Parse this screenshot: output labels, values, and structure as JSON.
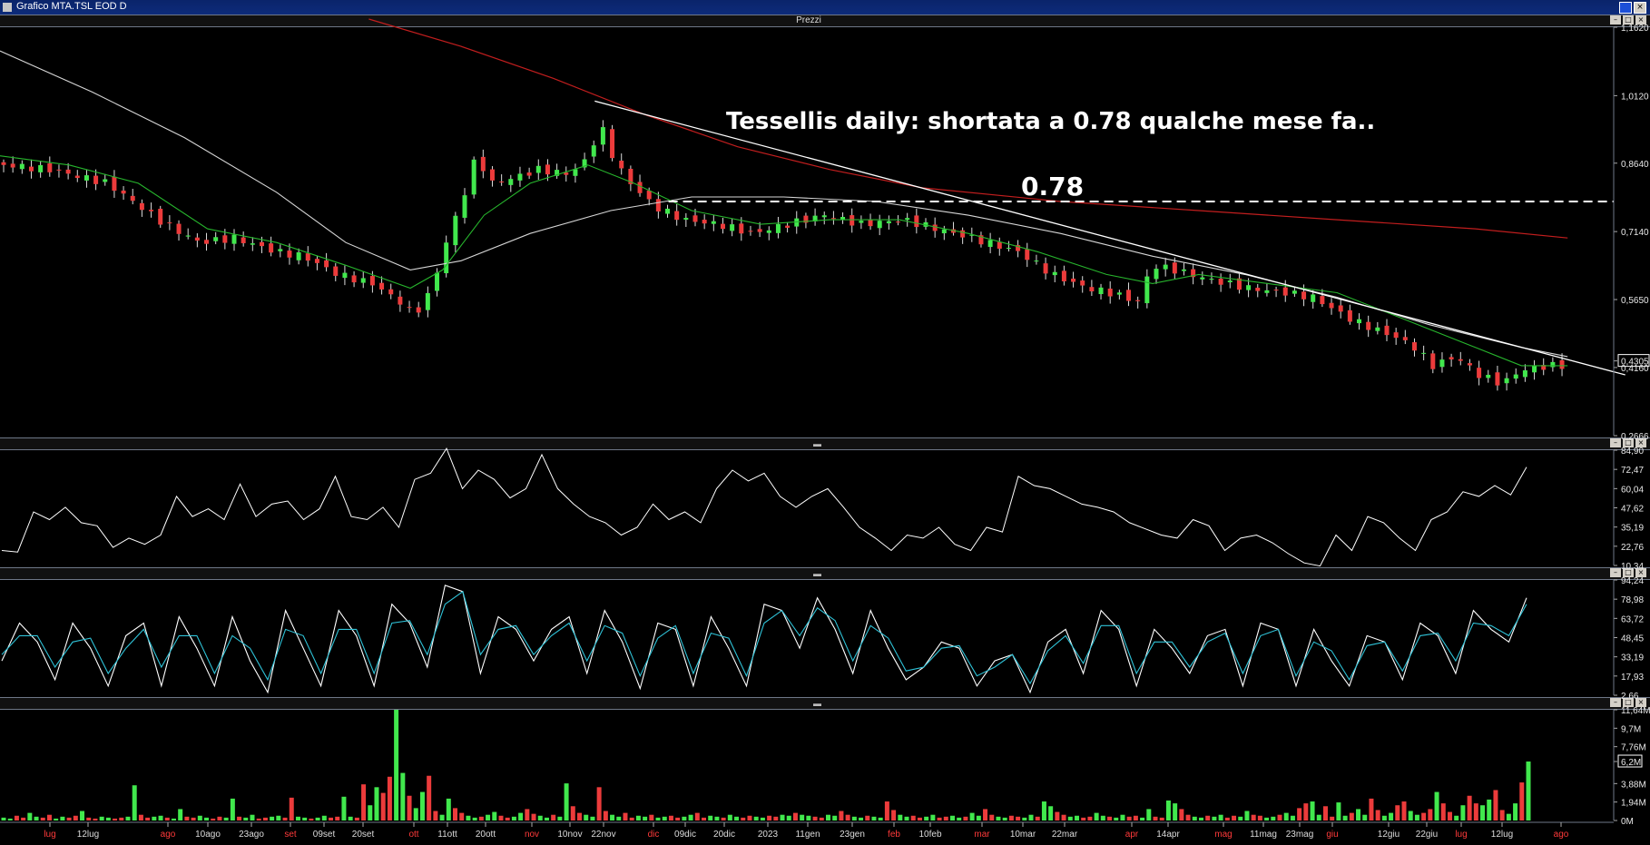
{
  "window": {
    "title": "Grafico MTA.TSL EOD D",
    "pane_label": "Prezzi"
  },
  "annotation": {
    "text": "Tessellis daily: shortata a 0.78 qualche mese fa..",
    "level_label": "0.78",
    "level": 0.78
  },
  "colors": {
    "background": "#000000",
    "up_candle": "#41e84d",
    "down_candle": "#ec3b3b",
    "ma_short": "#27b52d",
    "ma_long": "#d6d6d6",
    "ma_200": "#c21e1e",
    "trendline": "#ffffff",
    "stoch_k": "#ffffff",
    "stoch_d": "#2fc3d8",
    "date_month": "#ff3a3a",
    "date_day": "#dddddd"
  },
  "chart_data": [
    {
      "type": "candlestick",
      "title": "Prezzi",
      "y_ticks": [
        "1,1620",
        "1,0120",
        "0,8640",
        "0,7140",
        "0,5650",
        "0,4305",
        "0,4160",
        "0,2666"
      ],
      "ylim": [
        0.2666,
        1.162
      ],
      "last_price_label": "0,4305",
      "x_ticks": [
        {
          "label": "lug",
          "month": true
        },
        {
          "label": "12lug",
          "month": false
        },
        {
          "label": "ago",
          "month": true
        },
        {
          "label": "10ago",
          "month": false
        },
        {
          "label": "23ago",
          "month": false
        },
        {
          "label": "set",
          "month": true
        },
        {
          "label": "09set",
          "month": false
        },
        {
          "label": "20set",
          "month": false
        },
        {
          "label": "ott",
          "month": true
        },
        {
          "label": "11ott",
          "month": false
        },
        {
          "label": "20ott",
          "month": false
        },
        {
          "label": "nov",
          "month": true
        },
        {
          "label": "10nov",
          "month": false
        },
        {
          "label": "22nov",
          "month": false
        },
        {
          "label": "dic",
          "month": true
        },
        {
          "label": "09dic",
          "month": false
        },
        {
          "label": "20dic",
          "month": false
        },
        {
          "label": "2023",
          "month": false
        },
        {
          "label": "11gen",
          "month": false
        },
        {
          "label": "23gen",
          "month": false
        },
        {
          "label": "feb",
          "month": true
        },
        {
          "label": "10feb",
          "month": false
        },
        {
          "label": "mar",
          "month": true
        },
        {
          "label": "10mar",
          "month": false
        },
        {
          "label": "22mar",
          "month": false
        },
        {
          "label": "apr",
          "month": true
        },
        {
          "label": "14apr",
          "month": false
        },
        {
          "label": "mag",
          "month": true
        },
        {
          "label": "11mag",
          "month": false
        },
        {
          "label": "23mag",
          "month": false
        },
        {
          "label": "giu",
          "month": true
        },
        {
          "label": "12giu",
          "month": false
        },
        {
          "label": "22giu",
          "month": false
        },
        {
          "label": "lug",
          "month": true
        },
        {
          "label": "12lug",
          "month": false
        },
        {
          "label": "ago",
          "month": true
        }
      ],
      "close_path": [
        [
          0,
          0.86
        ],
        [
          20,
          0.85
        ],
        [
          45,
          0.82
        ],
        [
          70,
          0.73
        ],
        [
          85,
          0.69
        ],
        [
          100,
          0.7
        ],
        [
          118,
          0.67
        ],
        [
          130,
          0.66
        ],
        [
          145,
          0.62
        ],
        [
          160,
          0.6
        ],
        [
          172,
          0.56
        ],
        [
          178,
          0.53
        ],
        [
          185,
          0.58
        ],
        [
          192,
          0.69
        ],
        [
          200,
          0.8
        ],
        [
          205,
          0.88
        ],
        [
          212,
          0.82
        ],
        [
          220,
          0.83
        ],
        [
          232,
          0.85
        ],
        [
          245,
          0.84
        ],
        [
          255,
          0.88
        ],
        [
          258,
          0.97
        ],
        [
          262,
          0.9
        ],
        [
          270,
          0.83
        ],
        [
          282,
          0.77
        ],
        [
          295,
          0.74
        ],
        [
          310,
          0.73
        ],
        [
          325,
          0.71
        ],
        [
          340,
          0.73
        ],
        [
          356,
          0.75
        ],
        [
          372,
          0.73
        ],
        [
          390,
          0.74
        ],
        [
          405,
          0.72
        ],
        [
          420,
          0.7
        ],
        [
          440,
          0.67
        ],
        [
          455,
          0.62
        ],
        [
          470,
          0.59
        ],
        [
          480,
          0.58
        ],
        [
          492,
          0.56
        ],
        [
          498,
          0.64
        ],
        [
          508,
          0.63
        ],
        [
          522,
          0.61
        ],
        [
          540,
          0.59
        ],
        [
          556,
          0.58
        ],
        [
          568,
          0.57
        ],
        [
          585,
          0.52
        ],
        [
          595,
          0.5
        ],
        [
          605,
          0.48
        ],
        [
          612,
          0.46
        ],
        [
          620,
          0.42
        ],
        [
          630,
          0.44
        ],
        [
          640,
          0.4
        ],
        [
          650,
          0.38
        ],
        [
          658,
          0.41
        ],
        [
          670,
          0.42
        ],
        [
          677,
          0.42
        ],
        [
          680,
          0.44
        ]
      ],
      "ma_short_path": [
        [
          0,
          0.88
        ],
        [
          30,
          0.86
        ],
        [
          60,
          0.82
        ],
        [
          90,
          0.72
        ],
        [
          120,
          0.69
        ],
        [
          150,
          0.64
        ],
        [
          178,
          0.59
        ],
        [
          192,
          0.63
        ],
        [
          210,
          0.75
        ],
        [
          230,
          0.82
        ],
        [
          255,
          0.86
        ],
        [
          275,
          0.82
        ],
        [
          300,
          0.76
        ],
        [
          330,
          0.73
        ],
        [
          360,
          0.74
        ],
        [
          390,
          0.74
        ],
        [
          420,
          0.71
        ],
        [
          450,
          0.67
        ],
        [
          480,
          0.62
        ],
        [
          500,
          0.6
        ],
        [
          520,
          0.62
        ],
        [
          550,
          0.6
        ],
        [
          580,
          0.58
        ],
        [
          610,
          0.52
        ],
        [
          640,
          0.46
        ],
        [
          660,
          0.42
        ],
        [
          680,
          0.42
        ]
      ],
      "ma_long_path": [
        [
          0,
          1.11
        ],
        [
          40,
          1.02
        ],
        [
          80,
          0.92
        ],
        [
          120,
          0.8
        ],
        [
          150,
          0.69
        ],
        [
          178,
          0.63
        ],
        [
          200,
          0.65
        ],
        [
          230,
          0.71
        ],
        [
          265,
          0.76
        ],
        [
          300,
          0.79
        ],
        [
          340,
          0.79
        ],
        [
          380,
          0.78
        ],
        [
          420,
          0.75
        ],
        [
          460,
          0.71
        ],
        [
          500,
          0.66
        ],
        [
          540,
          0.62
        ],
        [
          580,
          0.57
        ],
        [
          620,
          0.51
        ],
        [
          660,
          0.46
        ],
        [
          680,
          0.44
        ]
      ],
      "ma_200_path": [
        [
          160,
          1.18
        ],
        [
          200,
          1.12
        ],
        [
          240,
          1.05
        ],
        [
          280,
          0.97
        ],
        [
          320,
          0.9
        ],
        [
          360,
          0.85
        ],
        [
          400,
          0.81
        ],
        [
          460,
          0.78
        ],
        [
          520,
          0.76
        ],
        [
          580,
          0.74
        ],
        [
          640,
          0.72
        ],
        [
          680,
          0.7
        ]
      ],
      "trendline": [
        [
          258,
          1.0
        ],
        [
          705,
          0.4
        ]
      ],
      "level_line_span": [
        290,
        700
      ],
      "bar_count": 700
    },
    {
      "type": "line",
      "title": "",
      "y_ticks": [
        "84,90",
        "72,47",
        "60,04",
        "47,62",
        "35,19",
        "22,76",
        "10,34"
      ],
      "ylim": [
        10.34,
        84.9
      ],
      "values": [
        20,
        19,
        45,
        40,
        48,
        38,
        36,
        22,
        28,
        24,
        30,
        55,
        42,
        47,
        40,
        63,
        42,
        50,
        52,
        40,
        47,
        68,
        42,
        40,
        48,
        35,
        66,
        70,
        86,
        60,
        72,
        66,
        54,
        60,
        82,
        60,
        50,
        42,
        38,
        30,
        35,
        50,
        40,
        45,
        38,
        60,
        72,
        65,
        70,
        55,
        48,
        55,
        60,
        48,
        35,
        28,
        20,
        30,
        28,
        35,
        24,
        20,
        35,
        32,
        68,
        62,
        60,
        55,
        50,
        48,
        45,
        38,
        34,
        30,
        28,
        40,
        36,
        20,
        28,
        30,
        25,
        18,
        12,
        10,
        30,
        20,
        42,
        38,
        28,
        20,
        40,
        45,
        58,
        55,
        62,
        56,
        74
      ]
    },
    {
      "type": "line",
      "title": "",
      "y_ticks": [
        "94,24",
        "78,98",
        "63,72",
        "48,45",
        "33,19",
        "17,93",
        "2,66"
      ],
      "ylim": [
        2.66,
        94.24
      ],
      "series": [
        {
          "key": "k",
          "values": [
            30,
            60,
            45,
            15,
            60,
            40,
            10,
            50,
            60,
            10,
            65,
            40,
            10,
            65,
            30,
            5,
            70,
            40,
            10,
            70,
            50,
            10,
            75,
            60,
            25,
            90,
            85,
            20,
            65,
            55,
            30,
            55,
            65,
            20,
            70,
            45,
            8,
            60,
            55,
            10,
            65,
            40,
            10,
            75,
            70,
            40,
            80,
            55,
            20,
            70,
            40,
            15,
            25,
            45,
            40,
            10,
            30,
            35,
            5,
            45,
            55,
            20,
            70,
            55,
            10,
            55,
            40,
            20,
            50,
            55,
            10,
            60,
            55,
            10,
            55,
            30,
            10,
            50,
            45,
            15,
            60,
            50,
            20,
            70,
            55,
            45,
            80
          ]
        },
        {
          "key": "d",
          "values": [
            35,
            50,
            50,
            25,
            45,
            48,
            20,
            40,
            55,
            25,
            50,
            50,
            20,
            50,
            40,
            15,
            55,
            50,
            20,
            55,
            55,
            20,
            60,
            62,
            35,
            75,
            85,
            35,
            55,
            58,
            35,
            50,
            60,
            30,
            58,
            52,
            18,
            48,
            58,
            20,
            52,
            48,
            18,
            60,
            70,
            50,
            72,
            62,
            30,
            58,
            48,
            22,
            25,
            40,
            42,
            18,
            25,
            35,
            12,
            38,
            50,
            28,
            58,
            58,
            20,
            45,
            45,
            25,
            45,
            52,
            20,
            50,
            55,
            18,
            45,
            38,
            15,
            42,
            45,
            22,
            50,
            52,
            30,
            60,
            58,
            50,
            75
          ]
        }
      ]
    },
    {
      "type": "bar",
      "title": "",
      "y_ticks": [
        "11,64M",
        "9,7M",
        "7,76M",
        "6,2M",
        "3,88M",
        "1,94M",
        "0M"
      ],
      "ylim": [
        0,
        11.64
      ],
      "values_m": [
        0.3,
        0.2,
        0.5,
        0.3,
        0.8,
        0.4,
        0.3,
        0.6,
        0.2,
        0.4,
        0.3,
        0.5,
        1.0,
        0.3,
        0.2,
        0.4,
        0.3,
        0.2,
        0.3,
        0.4,
        3.7,
        0.6,
        0.3,
        0.4,
        0.5,
        0.3,
        0.2,
        1.2,
        0.4,
        0.3,
        0.5,
        0.3,
        0.2,
        0.4,
        0.3,
        2.3,
        0.4,
        0.3,
        0.6,
        0.2,
        0.3,
        0.4,
        0.5,
        0.3,
        2.4,
        0.4,
        0.3,
        0.2,
        0.3,
        0.5,
        0.3,
        0.4,
        2.5,
        0.4,
        0.3,
        3.8,
        1.6,
        3.5,
        2.9,
        4.6,
        11.64,
        5.0,
        2.6,
        1.3,
        3.0,
        4.7,
        1.0,
        0.6,
        2.3,
        1.3,
        0.8,
        0.5,
        0.3,
        0.4,
        0.6,
        0.9,
        0.5,
        0.3,
        0.4,
        0.8,
        1.2,
        0.7,
        0.5,
        0.3,
        0.6,
        0.4,
        3.9,
        1.5,
        0.8,
        0.6,
        0.4,
        3.5,
        1.0,
        0.6,
        0.4,
        0.8,
        0.3,
        0.5,
        0.4,
        0.6,
        0.3,
        0.4,
        0.5,
        0.3,
        0.4,
        0.6,
        0.8,
        0.3,
        0.5,
        0.4,
        0.3,
        0.6,
        0.4,
        0.3,
        0.5,
        0.4,
        0.3,
        0.5,
        0.4,
        0.6,
        0.5,
        0.8,
        0.6,
        0.5,
        0.4,
        0.3,
        0.6,
        0.5,
        1.0,
        0.6,
        0.4,
        0.3,
        0.5,
        0.4,
        0.3,
        2.0,
        1.1,
        0.6,
        0.4,
        0.5,
        0.3,
        0.4,
        0.6,
        0.3,
        0.4,
        0.5,
        0.3,
        0.4,
        0.8,
        0.5,
        1.2,
        0.6,
        0.4,
        0.3,
        0.5,
        0.4,
        0.3,
        0.6,
        0.4,
        2.0,
        1.5,
        0.9,
        0.6,
        0.4,
        0.5,
        0.3,
        0.4,
        0.8,
        0.5,
        0.4,
        0.3,
        0.6,
        0.4,
        0.5,
        0.3,
        1.2,
        0.4,
        0.3,
        2.1,
        1.8,
        1.2,
        0.6,
        0.4,
        0.3,
        0.5,
        0.4,
        0.6,
        0.3,
        0.5,
        0.4,
        1.0,
        0.6,
        0.5,
        0.3,
        0.4,
        0.6,
        0.8,
        0.5,
        1.3,
        1.8,
        2.0,
        0.6,
        1.5,
        0.4,
        1.9,
        0.5,
        0.8,
        1.2,
        0.6,
        2.3,
        1.1,
        0.5,
        0.8,
        1.6,
        2.0,
        1.0,
        0.6,
        0.8,
        1.2,
        3.0,
        1.8,
        0.9,
        0.5,
        1.6,
        2.6,
        1.8,
        1.6,
        2.2,
        3.2,
        1.1,
        0.7,
        1.8,
        4.0,
        6.2
      ]
    }
  ]
}
